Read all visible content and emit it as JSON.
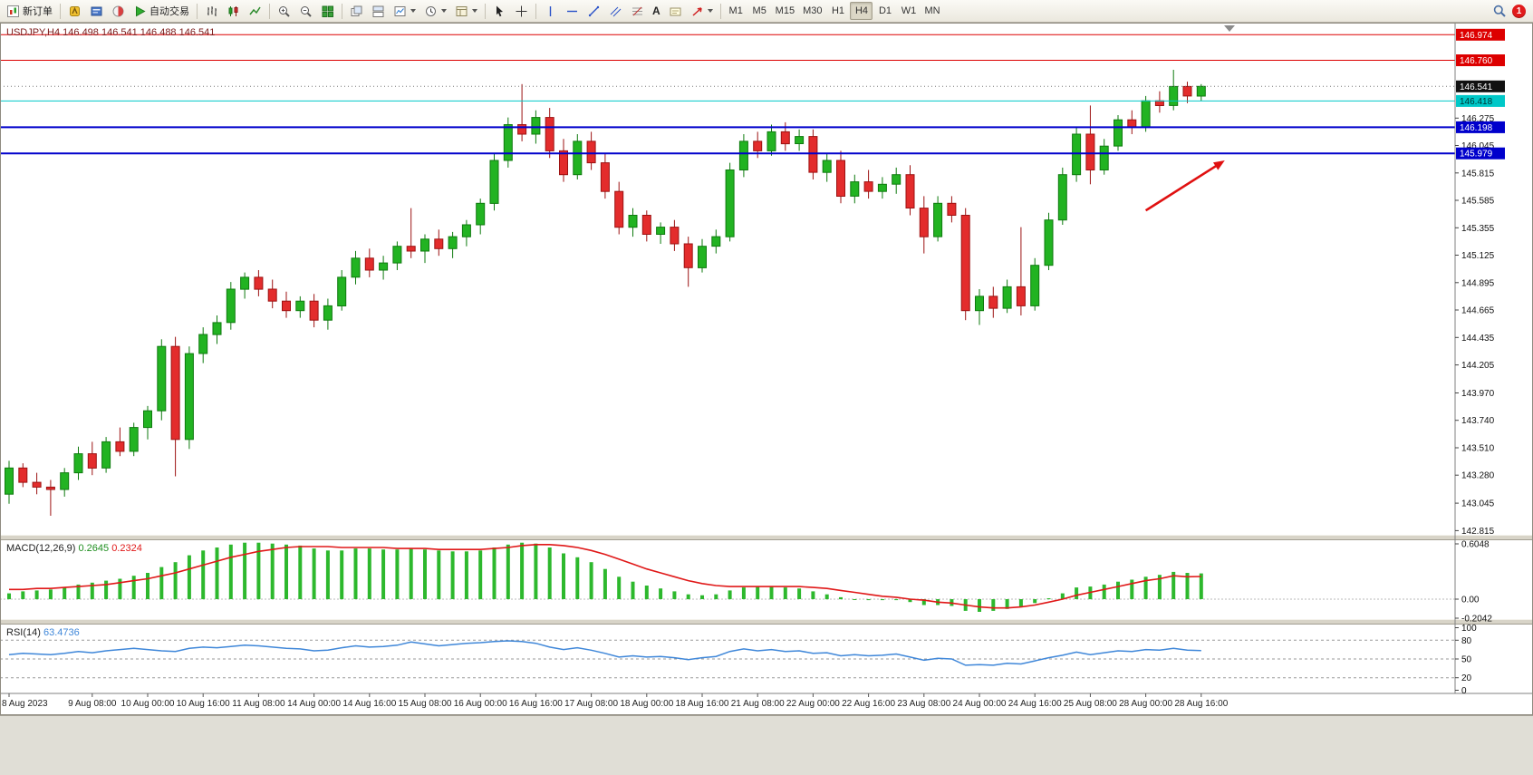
{
  "toolbar": {
    "new_order_label": "新订单",
    "autotrading_label": "自动交易",
    "text_tool_label": "A",
    "timeframes": [
      "M1",
      "M5",
      "M15",
      "M30",
      "H1",
      "H4",
      "D1",
      "W1",
      "MN"
    ],
    "active_timeframe": "H4",
    "notification_count": "1"
  },
  "chart_data": {
    "type": "candlestick",
    "symbol": "USDJPY",
    "period": "H4",
    "title": "USDJPY,H4 146.498 146.541 146.488 146.541",
    "ylim": [
      142.78,
      147.06
    ],
    "colors": {
      "up": "#22b322",
      "up_edge": "#0e7a0e",
      "down": "#e32c2c",
      "down_edge": "#9c1212",
      "bg": "#ffffff"
    },
    "axis_ticks": [
      "146.275",
      "146.045",
      "145.815",
      "145.585",
      "145.355",
      "145.125",
      "144.895",
      "144.665",
      "144.435",
      "144.205",
      "143.970",
      "143.740",
      "143.510",
      "143.280",
      "143.045",
      "142.815"
    ],
    "tagged_levels": [
      {
        "label": "146.974",
        "price": 146.974,
        "box": "#dd0000",
        "text": "#ffffff",
        "line": "#dd0000",
        "width": 1
      },
      {
        "label": "146.760",
        "price": 146.76,
        "box": "#dd0000",
        "text": "#ffffff",
        "line": "#dd0000",
        "width": 1
      },
      {
        "label": "146.541",
        "price": 146.541,
        "box": "#111111",
        "text": "#ffffff",
        "line": "#777777",
        "width": 1,
        "dotted": true
      },
      {
        "label": "146.418",
        "price": 146.418,
        "box": "#00c8c8",
        "text": "#003333",
        "line": "#00c8c8",
        "width": 1
      },
      {
        "label": "146.198",
        "price": 146.198,
        "box": "#0000cc",
        "text": "#ffffff",
        "line": "#0000cc",
        "width": 2
      },
      {
        "label": "145.979",
        "price": 145.979,
        "box": "#0000cc",
        "text": "#ffffff",
        "line": "#0000cc",
        "width": 2
      }
    ],
    "candles": [
      [
        143.12,
        143.4,
        143.04,
        143.34
      ],
      [
        143.34,
        143.38,
        143.18,
        143.22
      ],
      [
        143.22,
        143.3,
        143.12,
        143.18
      ],
      [
        143.18,
        143.24,
        142.94,
        143.16
      ],
      [
        143.16,
        143.34,
        143.1,
        143.3
      ],
      [
        143.3,
        143.52,
        143.24,
        143.46
      ],
      [
        143.46,
        143.56,
        143.28,
        143.34
      ],
      [
        143.34,
        143.6,
        143.3,
        143.56
      ],
      [
        143.56,
        143.68,
        143.44,
        143.48
      ],
      [
        143.48,
        143.72,
        143.44,
        143.68
      ],
      [
        143.68,
        143.86,
        143.58,
        143.82
      ],
      [
        143.82,
        144.42,
        143.74,
        144.36
      ],
      [
        144.36,
        144.44,
        143.27,
        143.58
      ],
      [
        143.58,
        144.36,
        143.5,
        144.3
      ],
      [
        144.3,
        144.52,
        144.22,
        144.46
      ],
      [
        144.46,
        144.62,
        144.38,
        144.56
      ],
      [
        144.56,
        144.9,
        144.5,
        144.84
      ],
      [
        144.84,
        144.98,
        144.76,
        144.94
      ],
      [
        144.94,
        145.0,
        144.78,
        144.84
      ],
      [
        144.84,
        144.92,
        144.68,
        144.74
      ],
      [
        144.74,
        144.82,
        144.6,
        144.66
      ],
      [
        144.66,
        144.78,
        144.6,
        144.74
      ],
      [
        144.74,
        144.8,
        144.52,
        144.58
      ],
      [
        144.58,
        144.76,
        144.5,
        144.7
      ],
      [
        144.7,
        145.0,
        144.66,
        144.94
      ],
      [
        144.94,
        145.16,
        144.88,
        145.1
      ],
      [
        145.1,
        145.18,
        144.94,
        145.0
      ],
      [
        145.0,
        145.12,
        144.92,
        145.06
      ],
      [
        145.06,
        145.24,
        145.0,
        145.2
      ],
      [
        145.2,
        145.52,
        145.1,
        145.16
      ],
      [
        145.16,
        145.3,
        145.06,
        145.26
      ],
      [
        145.26,
        145.34,
        145.12,
        145.18
      ],
      [
        145.18,
        145.32,
        145.1,
        145.28
      ],
      [
        145.28,
        145.42,
        145.2,
        145.38
      ],
      [
        145.38,
        145.6,
        145.3,
        145.56
      ],
      [
        145.56,
        145.98,
        145.5,
        145.92
      ],
      [
        145.92,
        146.28,
        145.86,
        146.22
      ],
      [
        146.22,
        146.56,
        146.08,
        146.14
      ],
      [
        146.14,
        146.34,
        146.06,
        146.28
      ],
      [
        146.28,
        146.36,
        145.94,
        146.0
      ],
      [
        146.0,
        146.1,
        145.74,
        145.8
      ],
      [
        145.8,
        146.14,
        145.76,
        146.08
      ],
      [
        146.08,
        146.16,
        145.84,
        145.9
      ],
      [
        145.9,
        145.98,
        145.6,
        145.66
      ],
      [
        145.66,
        145.74,
        145.3,
        145.36
      ],
      [
        145.36,
        145.52,
        145.28,
        145.46
      ],
      [
        145.46,
        145.5,
        145.24,
        145.3
      ],
      [
        145.3,
        145.4,
        145.22,
        145.36
      ],
      [
        145.36,
        145.42,
        145.16,
        145.22
      ],
      [
        145.22,
        145.28,
        144.86,
        145.02
      ],
      [
        145.02,
        145.26,
        144.98,
        145.2
      ],
      [
        145.2,
        145.34,
        145.14,
        145.28
      ],
      [
        145.28,
        145.9,
        145.24,
        145.84
      ],
      [
        145.84,
        146.14,
        145.78,
        146.08
      ],
      [
        146.08,
        146.16,
        145.94,
        146.0
      ],
      [
        146.0,
        146.22,
        145.96,
        146.16
      ],
      [
        146.16,
        146.24,
        146.0,
        146.06
      ],
      [
        146.06,
        146.18,
        146.0,
        146.12
      ],
      [
        146.12,
        146.18,
        145.76,
        145.82
      ],
      [
        145.82,
        145.98,
        145.74,
        145.92
      ],
      [
        145.92,
        146.0,
        145.56,
        145.62
      ],
      [
        145.62,
        145.8,
        145.56,
        145.74
      ],
      [
        145.74,
        145.84,
        145.6,
        145.66
      ],
      [
        145.66,
        145.78,
        145.6,
        145.72
      ],
      [
        145.72,
        145.86,
        145.64,
        145.8
      ],
      [
        145.8,
        145.88,
        145.46,
        145.52
      ],
      [
        145.52,
        145.62,
        145.14,
        145.28
      ],
      [
        145.28,
        145.62,
        145.24,
        145.56
      ],
      [
        145.56,
        145.62,
        145.4,
        145.46
      ],
      [
        145.46,
        145.52,
        144.58,
        144.66
      ],
      [
        144.66,
        144.84,
        144.54,
        144.78
      ],
      [
        144.78,
        144.86,
        144.6,
        144.68
      ],
      [
        144.68,
        144.92,
        144.64,
        144.86
      ],
      [
        144.86,
        145.36,
        144.62,
        144.7
      ],
      [
        144.7,
        145.1,
        144.66,
        145.04
      ],
      [
        145.04,
        145.48,
        145.0,
        145.42
      ],
      [
        145.42,
        145.86,
        145.38,
        145.8
      ],
      [
        145.8,
        146.2,
        145.74,
        146.14
      ],
      [
        146.14,
        146.38,
        145.72,
        145.84
      ],
      [
        145.84,
        146.1,
        145.8,
        146.04
      ],
      [
        146.04,
        146.3,
        146.0,
        146.26
      ],
      [
        146.26,
        146.34,
        146.14,
        146.2
      ],
      [
        146.2,
        146.46,
        146.16,
        146.42
      ],
      [
        146.42,
        146.5,
        146.32,
        146.38
      ],
      [
        146.38,
        146.68,
        146.34,
        146.54
      ],
      [
        146.54,
        146.58,
        146.4,
        146.46
      ],
      [
        146.46,
        146.56,
        146.42,
        146.541
      ]
    ],
    "time_labels": [
      [
        0,
        "8 Aug 2023"
      ],
      [
        6,
        "9 Aug 08:00"
      ],
      [
        10,
        "10 Aug 00:00"
      ],
      [
        14,
        "10 Aug 16:00"
      ],
      [
        18,
        "11 Aug 08:00"
      ],
      [
        22,
        "14 Aug 00:00"
      ],
      [
        26,
        "14 Aug 16:00"
      ],
      [
        30,
        "15 Aug 08:00"
      ],
      [
        34,
        "16 Aug 00:00"
      ],
      [
        38,
        "16 Aug 16:00"
      ],
      [
        42,
        "17 Aug 08:00"
      ],
      [
        46,
        "18 Aug 00:00"
      ],
      [
        50,
        "18 Aug 16:00"
      ],
      [
        54,
        "21 Aug 08:00"
      ],
      [
        58,
        "22 Aug 00:00"
      ],
      [
        62,
        "22 Aug 16:00"
      ],
      [
        66,
        "23 Aug 08:00"
      ],
      [
        70,
        "24 Aug 00:00"
      ],
      [
        74,
        "24 Aug 16:00"
      ],
      [
        78,
        "25 Aug 08:00"
      ],
      [
        82,
        "28 Aug 00:00"
      ],
      [
        86,
        "28 Aug 16:00"
      ]
    ],
    "macd": {
      "label": "MACD(12,26,9)",
      "value_main": "0.2645",
      "value_signal": "0.2324",
      "scale_max": 0.6048,
      "scale_min": -0.2042,
      "scale_labels": [
        "0.6048",
        "0.00",
        "-0.2042"
      ],
      "hist_color": "#2db82d",
      "signal_color": "#e01818",
      "hist": [
        0.06,
        0.08,
        0.09,
        0.1,
        0.12,
        0.15,
        0.17,
        0.19,
        0.21,
        0.24,
        0.27,
        0.33,
        0.38,
        0.45,
        0.5,
        0.53,
        0.56,
        0.58,
        0.58,
        0.57,
        0.56,
        0.55,
        0.52,
        0.5,
        0.5,
        0.52,
        0.52,
        0.51,
        0.51,
        0.52,
        0.51,
        0.5,
        0.49,
        0.49,
        0.5,
        0.53,
        0.56,
        0.58,
        0.57,
        0.53,
        0.47,
        0.43,
        0.38,
        0.31,
        0.23,
        0.18,
        0.14,
        0.11,
        0.08,
        0.05,
        0.04,
        0.05,
        0.09,
        0.12,
        0.13,
        0.13,
        0.12,
        0.11,
        0.08,
        0.05,
        0.02,
        0.0,
        -0.01,
        -0.01,
        -0.01,
        -0.03,
        -0.06,
        -0.06,
        -0.07,
        -0.12,
        -0.13,
        -0.12,
        -0.1,
        -0.08,
        -0.04,
        0.01,
        0.06,
        0.12,
        0.13,
        0.15,
        0.18,
        0.2,
        0.23,
        0.25,
        0.28,
        0.27,
        0.2645
      ],
      "signal": [
        0.1,
        0.1,
        0.11,
        0.11,
        0.12,
        0.13,
        0.14,
        0.15,
        0.17,
        0.19,
        0.21,
        0.24,
        0.27,
        0.31,
        0.35,
        0.39,
        0.43,
        0.46,
        0.49,
        0.51,
        0.53,
        0.54,
        0.54,
        0.54,
        0.53,
        0.53,
        0.53,
        0.53,
        0.52,
        0.52,
        0.52,
        0.51,
        0.51,
        0.51,
        0.51,
        0.52,
        0.53,
        0.55,
        0.56,
        0.56,
        0.55,
        0.53,
        0.5,
        0.46,
        0.41,
        0.36,
        0.31,
        0.27,
        0.23,
        0.19,
        0.16,
        0.14,
        0.13,
        0.13,
        0.13,
        0.13,
        0.13,
        0.13,
        0.12,
        0.11,
        0.09,
        0.07,
        0.05,
        0.03,
        0.02,
        0.0,
        -0.01,
        -0.03,
        -0.04,
        -0.06,
        -0.08,
        -0.09,
        -0.09,
        -0.08,
        -0.06,
        -0.03,
        0.0,
        0.04,
        0.07,
        0.1,
        0.13,
        0.16,
        0.19,
        0.21,
        0.24,
        0.23,
        0.2324
      ]
    },
    "rsi": {
      "label": "RSI(14)",
      "value": "63.4736",
      "color": "#3f87d9",
      "levels": [
        80,
        50,
        20
      ],
      "scale_labels": [
        [
          "100",
          100
        ],
        [
          "80",
          80
        ],
        [
          "50",
          50
        ],
        [
          "20",
          20
        ],
        [
          "0",
          0
        ]
      ],
      "series": [
        57,
        59,
        58,
        57,
        59,
        62,
        60,
        63,
        65,
        67,
        65,
        63,
        62,
        67,
        69,
        68,
        70,
        72,
        71,
        69,
        67,
        66,
        63,
        64,
        68,
        71,
        69,
        70,
        72,
        77,
        74,
        71,
        73,
        75,
        76,
        78,
        79,
        78,
        75,
        69,
        65,
        68,
        64,
        59,
        53,
        55,
        53,
        54,
        52,
        49,
        52,
        54,
        62,
        66,
        63,
        65,
        62,
        63,
        59,
        60,
        55,
        57,
        55,
        56,
        58,
        53,
        48,
        51,
        50,
        40,
        41,
        40,
        43,
        42,
        47,
        52,
        56,
        61,
        57,
        60,
        63,
        62,
        65,
        64,
        67,
        64,
        63.47
      ]
    },
    "annotation_arrow": {
      "from_index": 82,
      "from_price": 145.5,
      "to_index": 87.7,
      "to_price": 145.92,
      "color": "#e01010"
    }
  }
}
